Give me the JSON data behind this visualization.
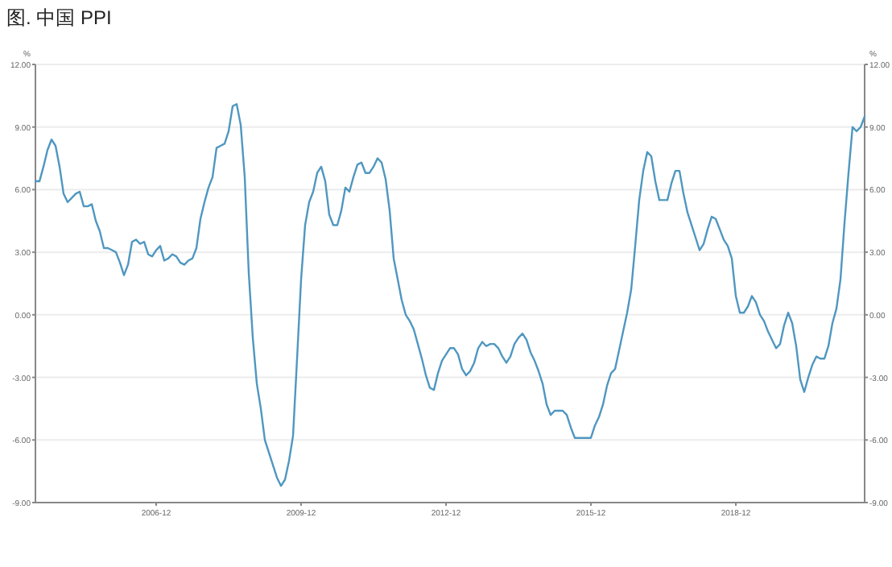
{
  "chart_data": {
    "type": "line",
    "title": "图. 中国 PPI",
    "ylabel": "%",
    "y2label": "%",
    "x": [
      "2004-06",
      "2004-07",
      "2004-08",
      "2004-09",
      "2004-10",
      "2004-11",
      "2004-12",
      "2005-01",
      "2005-02",
      "2005-03",
      "2005-04",
      "2005-05",
      "2005-06",
      "2005-07",
      "2005-08",
      "2005-09",
      "2005-10",
      "2005-11",
      "2005-12",
      "2006-01",
      "2006-02",
      "2006-03",
      "2006-04",
      "2006-05",
      "2006-06",
      "2006-07",
      "2006-08",
      "2006-09",
      "2006-10",
      "2006-11",
      "2006-12",
      "2007-01",
      "2007-02",
      "2007-03",
      "2007-04",
      "2007-05",
      "2007-06",
      "2007-07",
      "2007-08",
      "2007-09",
      "2007-10",
      "2007-11",
      "2007-12",
      "2008-01",
      "2008-02",
      "2008-03",
      "2008-04",
      "2008-05",
      "2008-06",
      "2008-07",
      "2008-08",
      "2008-09",
      "2008-10",
      "2008-11",
      "2008-12",
      "2009-01",
      "2009-02",
      "2009-03",
      "2009-04",
      "2009-05",
      "2009-06",
      "2009-07",
      "2009-08",
      "2009-09",
      "2009-10",
      "2009-11",
      "2009-12",
      "2010-01",
      "2010-02",
      "2010-03",
      "2010-04",
      "2010-05",
      "2010-06",
      "2010-07",
      "2010-08",
      "2010-09",
      "2010-10",
      "2010-11",
      "2010-12",
      "2011-01",
      "2011-02",
      "2011-03",
      "2011-04",
      "2011-05",
      "2011-06",
      "2011-07",
      "2011-08",
      "2011-09",
      "2011-10",
      "2011-11",
      "2011-12",
      "2012-01",
      "2012-02",
      "2012-03",
      "2012-04",
      "2012-05",
      "2012-06",
      "2012-07",
      "2012-08",
      "2012-09",
      "2012-10",
      "2012-11",
      "2012-12",
      "2013-01",
      "2013-02",
      "2013-03",
      "2013-04",
      "2013-05",
      "2013-06",
      "2013-07",
      "2013-08",
      "2013-09",
      "2013-10",
      "2013-11",
      "2013-12",
      "2014-01",
      "2014-02",
      "2014-03",
      "2014-04",
      "2014-05",
      "2014-06",
      "2014-07",
      "2014-08",
      "2014-09",
      "2014-10",
      "2014-11",
      "2014-12",
      "2015-01",
      "2015-02",
      "2015-03",
      "2015-04",
      "2015-05",
      "2015-06",
      "2015-07",
      "2015-08",
      "2015-09",
      "2015-10",
      "2015-11",
      "2015-12",
      "2016-01",
      "2016-02",
      "2016-03",
      "2016-04",
      "2016-05",
      "2016-06",
      "2016-07",
      "2016-08",
      "2016-09",
      "2016-10",
      "2016-11",
      "2016-12",
      "2017-01",
      "2017-02",
      "2017-03",
      "2017-04",
      "2017-05",
      "2017-06",
      "2017-07",
      "2017-08",
      "2017-09",
      "2017-10",
      "2017-11",
      "2017-12",
      "2018-01",
      "2018-02",
      "2018-03",
      "2018-04",
      "2018-05",
      "2018-06",
      "2018-07",
      "2018-08",
      "2018-09",
      "2018-10",
      "2018-11",
      "2018-12",
      "2019-01",
      "2019-02",
      "2019-03",
      "2019-04",
      "2019-05",
      "2019-06",
      "2019-07",
      "2019-08",
      "2019-09",
      "2019-10",
      "2019-11",
      "2019-12",
      "2020-01",
      "2020-02",
      "2020-03",
      "2020-04",
      "2020-05",
      "2020-06",
      "2020-07",
      "2020-08",
      "2020-09",
      "2020-10",
      "2020-11",
      "2020-12",
      "2021-01",
      "2021-02",
      "2021-03",
      "2021-04",
      "2021-05",
      "2021-06",
      "2021-07",
      "2021-08"
    ],
    "series": [
      {
        "color": "#4f97c0",
        "values": [
          6.4,
          6.4,
          7.1,
          7.9,
          8.4,
          8.1,
          7.1,
          5.8,
          5.4,
          5.6,
          5.8,
          5.9,
          5.2,
          5.2,
          5.3,
          4.5,
          4.0,
          3.2,
          3.2,
          3.1,
          3.0,
          2.5,
          1.9,
          2.4,
          3.5,
          3.6,
          3.4,
          3.5,
          2.9,
          2.8,
          3.1,
          3.3,
          2.6,
          2.7,
          2.9,
          2.8,
          2.5,
          2.4,
          2.6,
          2.7,
          3.2,
          4.6,
          5.4,
          6.1,
          6.6,
          8.0,
          8.1,
          8.2,
          8.8,
          10.0,
          10.1,
          9.1,
          6.6,
          2.0,
          -1.1,
          -3.3,
          -4.5,
          -6.0,
          -6.6,
          -7.2,
          -7.8,
          -8.2,
          -7.9,
          -7.0,
          -5.8,
          -2.1,
          1.7,
          4.3,
          5.4,
          5.9,
          6.8,
          7.1,
          6.4,
          4.8,
          4.3,
          4.3,
          5.0,
          6.1,
          5.9,
          6.6,
          7.2,
          7.3,
          6.8,
          6.8,
          7.1,
          7.5,
          7.3,
          6.5,
          5.0,
          2.7,
          1.7,
          0.7,
          0.0,
          -0.3,
          -0.7,
          -1.4,
          -2.1,
          -2.9,
          -3.5,
          -3.6,
          -2.8,
          -2.2,
          -1.9,
          -1.6,
          -1.6,
          -1.9,
          -2.6,
          -2.9,
          -2.7,
          -2.3,
          -1.6,
          -1.3,
          -1.5,
          -1.4,
          -1.4,
          -1.6,
          -2.0,
          -2.3,
          -2.0,
          -1.4,
          -1.1,
          -0.9,
          -1.2,
          -1.8,
          -2.2,
          -2.7,
          -3.3,
          -4.3,
          -4.8,
          -4.6,
          -4.6,
          -4.6,
          -4.8,
          -5.4,
          -5.9,
          -5.9,
          -5.9,
          -5.9,
          -5.9,
          -5.3,
          -4.9,
          -4.3,
          -3.4,
          -2.8,
          -2.6,
          -1.7,
          -0.8,
          0.1,
          1.2,
          3.3,
          5.5,
          6.9,
          7.8,
          7.6,
          6.4,
          5.5,
          5.5,
          5.5,
          6.3,
          6.9,
          6.9,
          5.8,
          4.9,
          4.3,
          3.7,
          3.1,
          3.4,
          4.1,
          4.7,
          4.6,
          4.1,
          3.6,
          3.3,
          2.7,
          0.9,
          0.1,
          0.1,
          0.4,
          0.9,
          0.6,
          0.0,
          -0.3,
          -0.8,
          -1.2,
          -1.6,
          -1.4,
          -0.5,
          0.1,
          -0.4,
          -1.5,
          -3.1,
          -3.7,
          -3.0,
          -2.4,
          -2.0,
          -2.1,
          -2.1,
          -1.5,
          -0.4,
          0.3,
          1.7,
          4.4,
          6.8,
          9.0,
          8.8,
          9.0,
          9.5
        ]
      }
    ],
    "xlim": [
      "2004-06",
      "2021-08"
    ],
    "xticks": [
      "2006-12",
      "2009-12",
      "2012-12",
      "2015-12",
      "2018-12"
    ],
    "ylim": [
      -9,
      12
    ],
    "yticks": [
      {
        "value": -9,
        "label": "-9.00"
      },
      {
        "value": -6,
        "label": "-6.00"
      },
      {
        "value": -3,
        "label": "-3.00"
      },
      {
        "value": 0,
        "label": "0.00"
      },
      {
        "value": 3,
        "label": "3.00"
      },
      {
        "value": 6,
        "label": "6.00"
      },
      {
        "value": 9,
        "label": "9.00"
      },
      {
        "value": 12,
        "label": "12.00"
      }
    ],
    "y2lim": [
      -9,
      12
    ],
    "y2ticks": [
      {
        "value": -9,
        "label": "-9.00"
      },
      {
        "value": -6,
        "label": "-6.00"
      },
      {
        "value": -3,
        "label": "-3.00"
      },
      {
        "value": 0,
        "label": "0.00"
      },
      {
        "value": 3,
        "label": "3.00"
      },
      {
        "value": 6,
        "label": "6.00"
      },
      {
        "value": 9,
        "label": "9.00"
      },
      {
        "value": 12,
        "label": "12.00"
      }
    ],
    "grid": "y"
  }
}
